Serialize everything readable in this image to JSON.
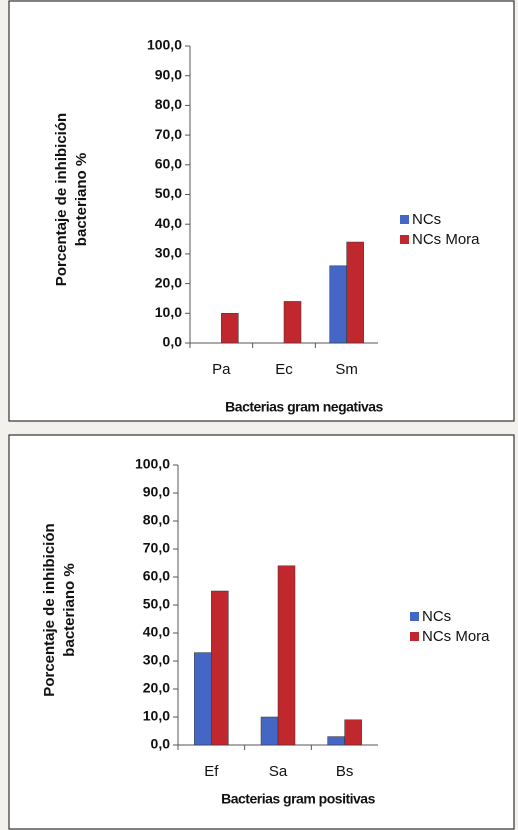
{
  "chart_data": [
    {
      "type": "bar",
      "xlabel": "Bacterias gram negativas",
      "ylabel": [
        "Porcentaje de inhibición",
        "bacteriano %"
      ],
      "categories": [
        "Pa",
        "Ec",
        "Sm"
      ],
      "series": [
        {
          "name": "NCs",
          "color": "#4466c4",
          "values": [
            0,
            0,
            26
          ]
        },
        {
          "name": "NCs Mora",
          "color": "#c0282e",
          "values": [
            10,
            14,
            34
          ]
        }
      ],
      "ylim": [
        0,
        100
      ],
      "yticks": [
        {
          "value": 0,
          "label": "0,0"
        },
        {
          "value": 10,
          "label": "10,0"
        },
        {
          "value": 20,
          "label": "20,0"
        },
        {
          "value": 30,
          "label": "30,0"
        },
        {
          "value": 40,
          "label": "40,0"
        },
        {
          "value": 50,
          "label": "50,0"
        },
        {
          "value": 60,
          "label": "60,0"
        },
        {
          "value": 70,
          "label": "70,0"
        },
        {
          "value": 80,
          "label": "80,0"
        },
        {
          "value": 90,
          "label": "90,0"
        },
        {
          "value": 100,
          "label": "100,0"
        }
      ],
      "legend": "right"
    },
    {
      "type": "bar",
      "xlabel": "Bacterias gram positivas",
      "ylabel": [
        "Porcentaje de inhibición",
        "bacteriano %"
      ],
      "categories": [
        "Ef",
        "Sa",
        "Bs"
      ],
      "series": [
        {
          "name": "NCs",
          "color": "#4466c4",
          "values": [
            33,
            10,
            3
          ]
        },
        {
          "name": "NCs Mora",
          "color": "#c0282e",
          "values": [
            55,
            64,
            9
          ]
        }
      ],
      "ylim": [
        0,
        100
      ],
      "yticks": [
        {
          "value": 0,
          "label": "0,0"
        },
        {
          "value": 10,
          "label": "10,0"
        },
        {
          "value": 20,
          "label": "20,0"
        },
        {
          "value": 30,
          "label": "30,0"
        },
        {
          "value": 40,
          "label": "40,0"
        },
        {
          "value": 50,
          "label": "50,0"
        },
        {
          "value": 60,
          "label": "60,0"
        },
        {
          "value": 70,
          "label": "70,0"
        },
        {
          "value": 80,
          "label": "80,0"
        },
        {
          "value": 90,
          "label": "90,0"
        },
        {
          "value": 100,
          "label": "100,0"
        }
      ],
      "legend": "right"
    }
  ]
}
